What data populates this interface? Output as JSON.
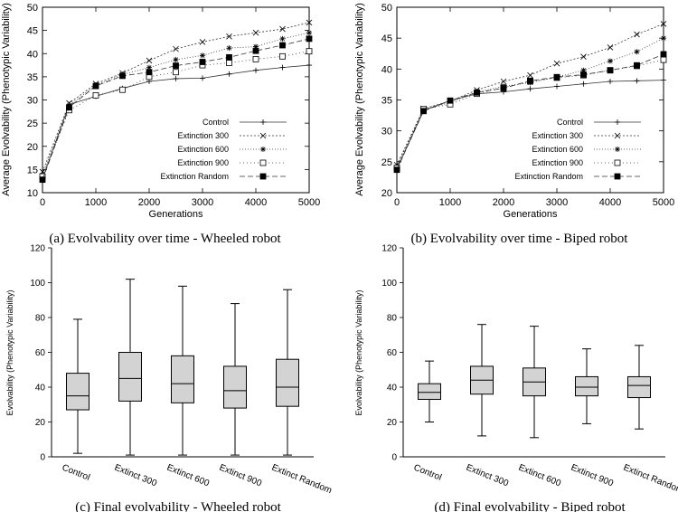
{
  "chart_data": [
    {
      "type": "line",
      "caption": "(a) Evolvability over time - Wheeled  robot",
      "xlabel": "Generations",
      "ylabel": "Average Evolvability (Phenotypic Variability)",
      "xlim": [
        0,
        5000
      ],
      "ylim": [
        10,
        50
      ],
      "xticks": [
        "0",
        "1000",
        "2000",
        "3000",
        "4000",
        "5000"
      ],
      "yticks": [
        "10",
        "15",
        "20",
        "25",
        "30",
        "35",
        "40",
        "45",
        "50"
      ],
      "x": [
        0,
        500,
        1000,
        1500,
        2000,
        2500,
        3000,
        3500,
        4000,
        4500,
        5000
      ],
      "legend_position": "bottom-right",
      "series": [
        {
          "name": "Control",
          "marker": "plus",
          "dash": "",
          "values": [
            13.0,
            29.0,
            30.8,
            32.5,
            34.0,
            34.6,
            34.7,
            35.6,
            36.4,
            37.0,
            37.5
          ]
        },
        {
          "name": "Extinction 300",
          "marker": "x",
          "dash": "2,2",
          "values": [
            14.5,
            29.3,
            33.5,
            35.8,
            38.5,
            41.0,
            42.5,
            43.7,
            44.5,
            45.3,
            46.7
          ]
        },
        {
          "name": "Extinction 600",
          "marker": "star",
          "dash": "1,2",
          "values": [
            13.8,
            28.8,
            33.2,
            35.5,
            37.0,
            38.7,
            39.6,
            41.2,
            41.5,
            43.2,
            44.5
          ]
        },
        {
          "name": "Extinction 900",
          "marker": "open-square",
          "dash": "1,3",
          "values": [
            13.5,
            27.8,
            31.0,
            32.2,
            35.0,
            36.0,
            37.5,
            38.0,
            38.8,
            39.4,
            40.5
          ]
        },
        {
          "name": "Extinction Random",
          "marker": "filled-square",
          "dash": "6,3",
          "values": [
            12.8,
            28.4,
            33.0,
            35.2,
            36.0,
            37.4,
            38.2,
            39.2,
            40.6,
            41.8,
            43.2
          ]
        }
      ]
    },
    {
      "type": "line",
      "caption": "(b) Evolvability over time - Biped robot",
      "xlabel": "Generations",
      "ylabel": "Average Evolvability (Phenotypic Variability)",
      "xlim": [
        0,
        5000
      ],
      "ylim": [
        20,
        50
      ],
      "xticks": [
        "0",
        "1000",
        "2000",
        "3000",
        "4000",
        "5000"
      ],
      "yticks": [
        "20",
        "25",
        "30",
        "35",
        "40",
        "45",
        "50"
      ],
      "x": [
        0,
        500,
        1000,
        1500,
        2000,
        2500,
        3000,
        3500,
        4000,
        4500,
        5000
      ],
      "legend_position": "bottom-right",
      "series": [
        {
          "name": "Control",
          "marker": "plus",
          "dash": "",
          "values": [
            23.8,
            33.3,
            34.9,
            36.0,
            36.3,
            36.8,
            37.2,
            37.6,
            38.0,
            38.1,
            38.2
          ]
        },
        {
          "name": "Extinction 300",
          "marker": "x",
          "dash": "2,2",
          "values": [
            24.5,
            33.6,
            34.8,
            36.6,
            38.0,
            39.0,
            40.9,
            42.0,
            43.5,
            45.6,
            47.3
          ]
        },
        {
          "name": "Extinction 600",
          "marker": "star",
          "dash": "1,2",
          "values": [
            24.2,
            33.4,
            34.6,
            36.3,
            37.2,
            37.8,
            38.7,
            39.8,
            41.3,
            42.8,
            45.0
          ]
        },
        {
          "name": "Extinction 900",
          "marker": "open-square",
          "dash": "1,3",
          "values": [
            24.0,
            33.5,
            34.3,
            36.0,
            37.0,
            38.0,
            38.6,
            39.0,
            39.8,
            40.5,
            41.5
          ]
        },
        {
          "name": "Extinction Random",
          "marker": "filled-square",
          "dash": "6,3",
          "values": [
            23.7,
            33.2,
            34.9,
            36.2,
            36.9,
            38.1,
            38.7,
            39.1,
            39.8,
            40.6,
            42.4
          ]
        }
      ]
    },
    {
      "type": "box",
      "caption": "(c) Final evolvability - Wheeled robot",
      "ylabel": "Evolvability (Phenotypic Variability)",
      "ylim": [
        0,
        120
      ],
      "yticks": [
        "0",
        "20",
        "40",
        "60",
        "80",
        "100",
        "120"
      ],
      "categories": [
        "Control",
        "Extinct 300",
        "Extinct 600",
        "Extinct 900",
        "Extinct Random"
      ],
      "boxes": [
        {
          "min": 2,
          "q1": 27,
          "median": 35,
          "q3": 48,
          "max": 79
        },
        {
          "min": 1,
          "q1": 32,
          "median": 45,
          "q3": 60,
          "max": 102
        },
        {
          "min": 1,
          "q1": 31,
          "median": 42,
          "q3": 58,
          "max": 98
        },
        {
          "min": 1,
          "q1": 28,
          "median": 38,
          "q3": 52,
          "max": 88
        },
        {
          "min": 1,
          "q1": 29,
          "median": 40,
          "q3": 56,
          "max": 96
        }
      ]
    },
    {
      "type": "box",
      "caption": "(d) Final evolvability - Biped robot",
      "ylabel": "Evolvability (Phenotypic Variability)",
      "ylim": [
        0,
        120
      ],
      "yticks": [
        "0",
        "20",
        "40",
        "60",
        "80",
        "100",
        "120"
      ],
      "categories": [
        "Control",
        "Extinct 300",
        "Extinct 600",
        "Extinct 900",
        "Extinct Random"
      ],
      "boxes": [
        {
          "min": 20,
          "q1": 33,
          "median": 37,
          "q3": 42,
          "max": 55
        },
        {
          "min": 12,
          "q1": 36,
          "median": 44,
          "q3": 52,
          "max": 76
        },
        {
          "min": 11,
          "q1": 35,
          "median": 43,
          "q3": 51,
          "max": 75
        },
        {
          "min": 19,
          "q1": 35,
          "median": 40,
          "q3": 46,
          "max": 62
        },
        {
          "min": 16,
          "q1": 34,
          "median": 41,
          "q3": 46,
          "max": 64
        }
      ]
    }
  ]
}
